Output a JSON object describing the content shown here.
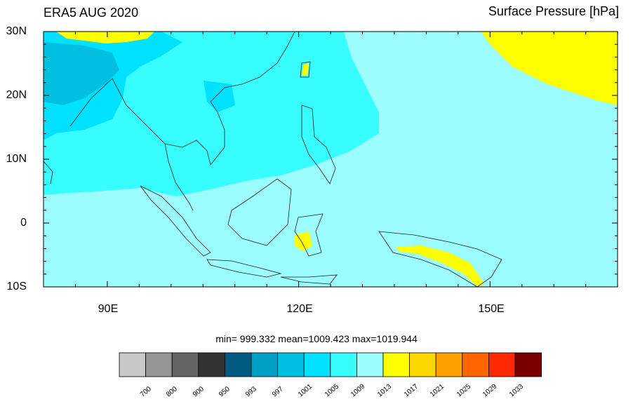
{
  "title_left": "ERA5 AUG 2020",
  "title_right": "Surface Pressure [hPa]",
  "lat_labels": [
    "30N",
    "20N",
    "10N",
    "0",
    "10S"
  ],
  "lon_labels": [
    "90E",
    "120E",
    "150E"
  ],
  "stats": "min= 999.332  mean=1009.423  max=1019.944",
  "colorbar": {
    "colors": [
      "#c8c8c8",
      "#969696",
      "#646464",
      "#323232",
      "#005a82",
      "#009fc6",
      "#00bfe0",
      "#00e1ff",
      "#37fdff",
      "#9bfdfd",
      "#ffff00",
      "#ffd700",
      "#ff9f00",
      "#ff6400",
      "#ff2800",
      "#780000"
    ],
    "labels": [
      "700",
      "800",
      "900",
      "950",
      "993",
      "997",
      "1001",
      "1005",
      "1009",
      "1013",
      "1017",
      "1021",
      "1025",
      "1029",
      "1033"
    ]
  },
  "map_colors": {
    "background": "#9bfdfd",
    "mid": "#37fdff",
    "low": "#00e1ff",
    "lower": "#00bfe0",
    "high": "#ffff00"
  }
}
